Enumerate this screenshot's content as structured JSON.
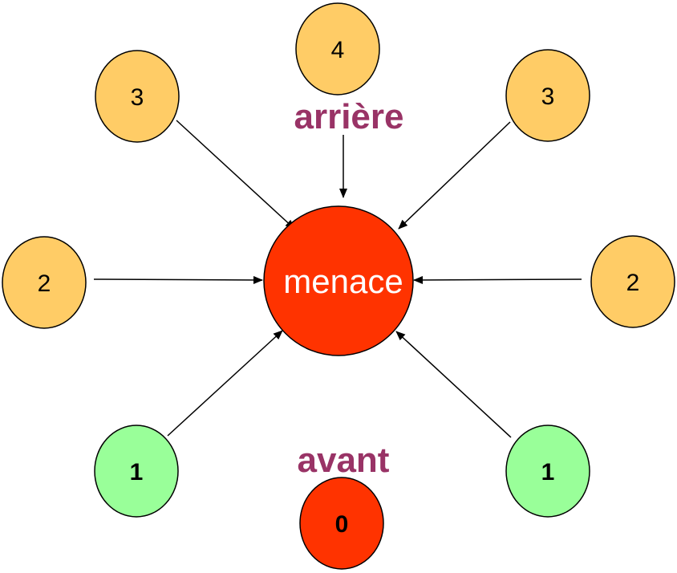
{
  "center": {
    "label": "menace",
    "fill": "#FF3300"
  },
  "labels": {
    "rear": "arrière",
    "front": "avant"
  },
  "nodes": {
    "top": {
      "label": "4"
    },
    "upper_left": {
      "label": "3"
    },
    "upper_right": {
      "label": "3"
    },
    "mid_left": {
      "label": "2"
    },
    "mid_right": {
      "label": "2"
    },
    "lower_left": {
      "label": "1"
    },
    "lower_right": {
      "label": "1"
    },
    "bottom": {
      "label": "0"
    }
  },
  "colors": {
    "orange_node": "#FFCC66",
    "green_node": "#99FF99",
    "red_node": "#FF3300",
    "label_text": "#993366",
    "stroke": "#000000"
  }
}
